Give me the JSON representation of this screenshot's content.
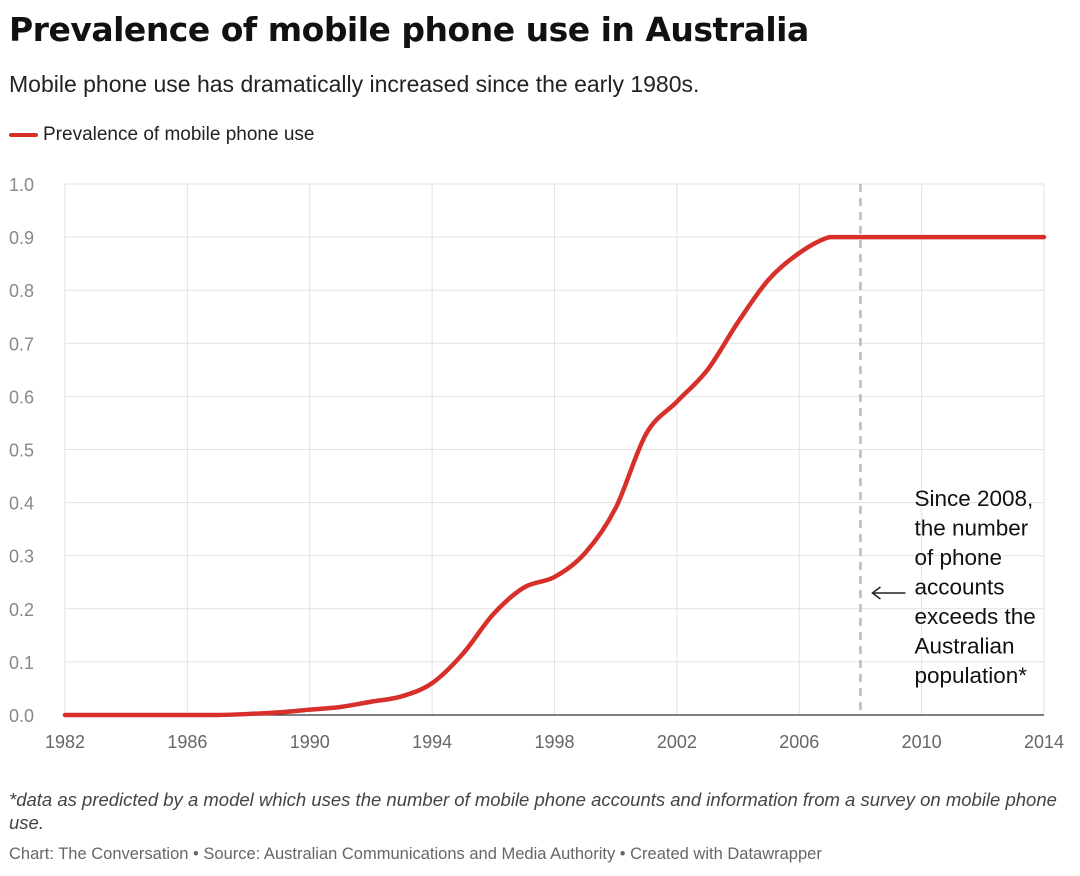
{
  "header": {
    "title": "Prevalence of mobile phone use in Australia",
    "subtitle": "Mobile phone use has dramatically increased since the early 1980s."
  },
  "legend": {
    "entries": [
      {
        "label": "Prevalence of mobile phone use",
        "color": "#d7302b"
      }
    ],
    "placement": "top-left"
  },
  "chart_data": {
    "type": "line",
    "title": "Prevalence of mobile phone use in Australia",
    "subtitle": "Mobile phone use has dramatically increased since the early 1980s.",
    "xlabel": "",
    "ylabel": "",
    "xlim": [
      1982,
      2014
    ],
    "ylim": [
      0,
      1.0
    ],
    "grid": true,
    "x_ticks": [
      "1982",
      "1986",
      "1990",
      "1994",
      "1998",
      "2002",
      "2006",
      "2010",
      "2014"
    ],
    "y_ticks": [
      "0.0",
      "0.1",
      "0.2",
      "0.3",
      "0.4",
      "0.5",
      "0.6",
      "0.7",
      "0.8",
      "0.9",
      "1.0"
    ],
    "series": [
      {
        "name": "Prevalence of mobile phone use",
        "color": "#d7302b",
        "x": [
          1982,
          1983,
          1984,
          1985,
          1986,
          1987,
          1988,
          1989,
          1990,
          1991,
          1992,
          1993,
          1994,
          1995,
          1996,
          1997,
          1998,
          1999,
          2000,
          2001,
          2002,
          2003,
          2004,
          2005,
          2006,
          2007,
          2008,
          2009,
          2010,
          2011,
          2012,
          2013,
          2014
        ],
        "y": [
          0.0,
          0.0,
          0.0,
          0.0,
          0.0,
          0.0,
          0.002,
          0.005,
          0.01,
          0.015,
          0.025,
          0.035,
          0.06,
          0.115,
          0.19,
          0.24,
          0.26,
          0.305,
          0.39,
          0.53,
          0.59,
          0.65,
          0.74,
          0.82,
          0.87,
          0.9,
          0.9,
          0.9,
          0.9,
          0.9,
          0.9,
          0.9,
          0.9
        ]
      }
    ],
    "reference_lines": [
      {
        "x": 2008,
        "style": "dashed",
        "color": "#bbbbbb"
      }
    ],
    "annotations": [
      {
        "text": "Since 2008,\nthe number\nof phone\naccounts\nexceeds the\nAustralian\npopulation*",
        "points_to_x": 2008
      }
    ]
  },
  "footer": {
    "note": "*data as predicted by a model which uses the number of mobile phone accounts and information from a survey on mobile phone use.",
    "credits": "Chart: The Conversation • Source: Australian Communications and Media Authority • Created with Datawrapper"
  }
}
